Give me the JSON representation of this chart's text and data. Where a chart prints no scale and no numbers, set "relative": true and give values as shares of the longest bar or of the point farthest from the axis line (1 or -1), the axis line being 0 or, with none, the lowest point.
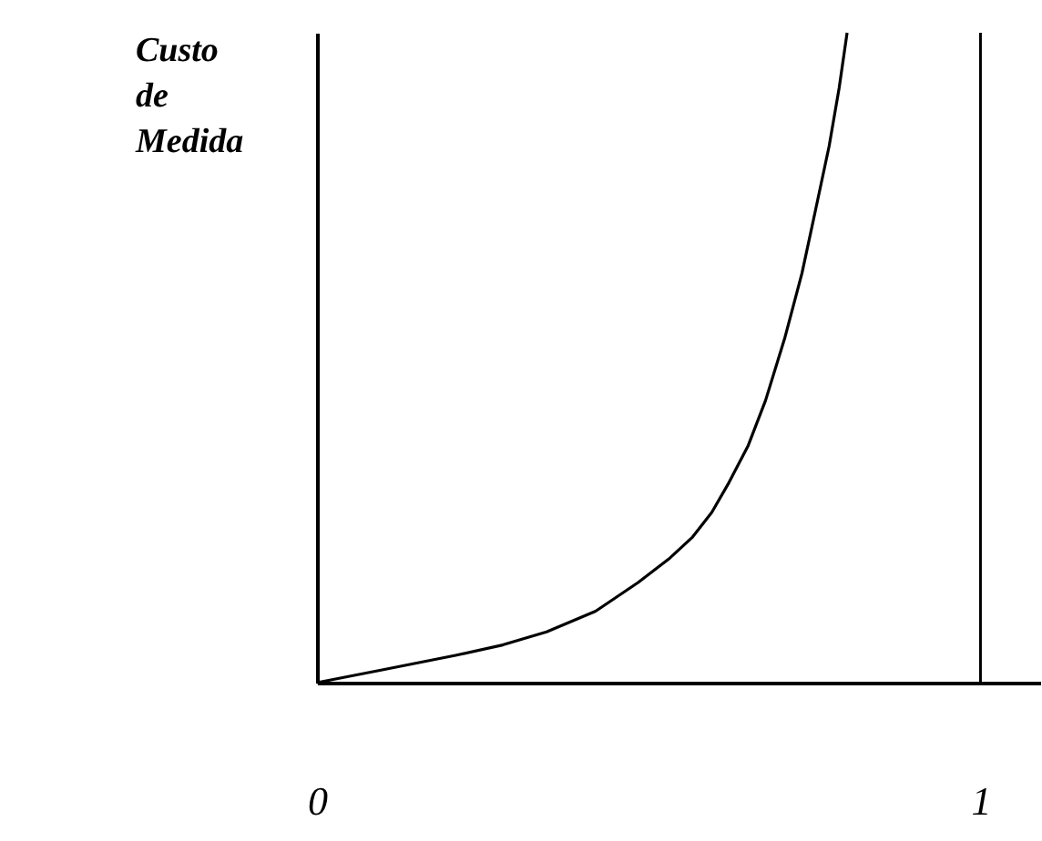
{
  "chart_data": {
    "type": "line",
    "relative": true,
    "ylabel": "Custo de Medida",
    "xlim": [
      0,
      1.09
    ],
    "xticks": [
      0,
      1
    ],
    "tick_labels": "x",
    "x": [
      0,
      0.1,
      0.209,
      0.28,
      0.346,
      0.42,
      0.484,
      0.53,
      0.566,
      0.595,
      0.621,
      0.65,
      0.676,
      0.705,
      0.731,
      0.752,
      0.772,
      0.787,
      0.799
    ],
    "series": [
      {
        "color": "#000000",
        "values": [
          0,
          0.02,
          0.042,
          0.058,
          0.078,
          0.11,
          0.154,
          0.19,
          0.224,
          0.262,
          0.308,
          0.365,
          0.434,
          0.53,
          0.63,
          0.73,
          0.826,
          0.915,
          1
        ]
      }
    ],
    "ref_lines": [
      {
        "axis": "x",
        "value": 1,
        "color": "#000000"
      }
    ]
  }
}
